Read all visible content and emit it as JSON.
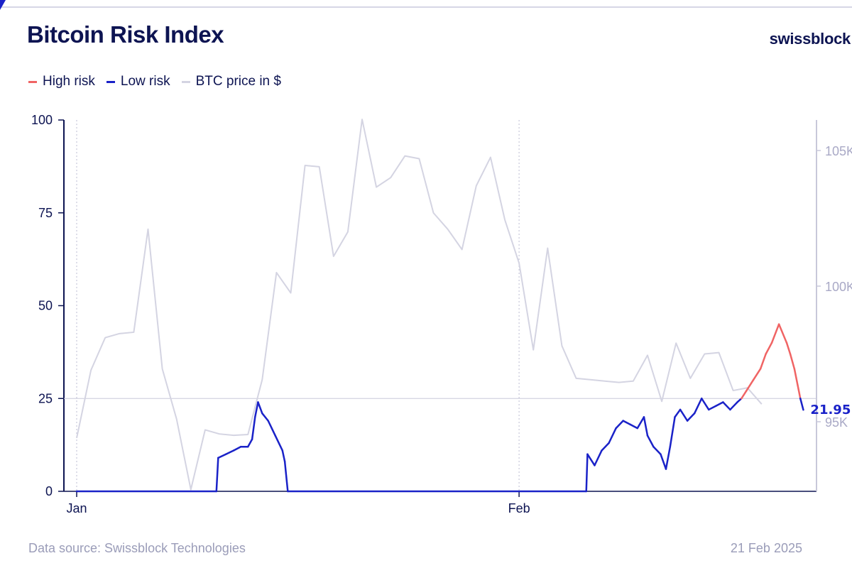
{
  "header": {
    "title": "Bitcoin Risk Index",
    "brand": "swissblock"
  },
  "footer": {
    "source": "Data source: Swissblock Technologies",
    "date": "21 Feb 2025"
  },
  "colors": {
    "high_risk": "#f06464",
    "low_risk": "#1a22c8",
    "btc_price": "#d4d4e2",
    "text": "#0d1452"
  },
  "chart_data": {
    "type": "line",
    "title": "Bitcoin Risk Index",
    "legend": {
      "position": "top-left",
      "entries": [
        "High risk",
        "Low risk",
        "BTC price in $"
      ]
    },
    "x_ticks": [
      {
        "label": "Jan",
        "date": "2025-01-01"
      },
      {
        "label": "Feb",
        "date": "2025-02-01"
      }
    ],
    "y_left": {
      "range": [
        0,
        100
      ],
      "ticks": [
        "0",
        "25",
        "50",
        "75",
        "100"
      ]
    },
    "y_right": {
      "range": [
        92500,
        106150
      ],
      "ticks": [
        {
          "label": "95K",
          "value": 95000
        },
        {
          "label": "100K",
          "value": 100000
        },
        {
          "label": "105K",
          "value": 105000
        }
      ]
    },
    "threshold": 25,
    "last_value_label": "21.95",
    "grid": false,
    "series": [
      {
        "name": "BTC price in $",
        "axis": "right",
        "start_date": "2025-01-01",
        "values": [
          94400,
          96900,
          98100,
          98250,
          98300,
          102100,
          96950,
          95100,
          92500,
          94700,
          94550,
          94500,
          94530,
          96550,
          100500,
          99750,
          104450,
          104400,
          101100,
          102000,
          106150,
          103650,
          104000,
          104800,
          104700,
          102700,
          102100,
          101350,
          103700,
          104750,
          102450,
          100850,
          97650,
          101400,
          97800,
          96600,
          96550,
          96500,
          96450,
          96500,
          97450,
          95750,
          97900,
          96600,
          97500,
          97550,
          96150,
          96250,
          95650
        ]
      },
      {
        "name": "Risk index",
        "axis": "left",
        "high_label": "High risk",
        "low_label": "Low risk",
        "points": [
          [
            "2025-01-01T00:00",
            0
          ],
          [
            "2025-01-10T19:00",
            0
          ],
          [
            "2025-01-10T22:00",
            9
          ],
          [
            "2025-01-11T11:00",
            10
          ],
          [
            "2025-01-12T00:00",
            11
          ],
          [
            "2025-01-12T12:00",
            12
          ],
          [
            "2025-01-13T00:00",
            12
          ],
          [
            "2025-01-13T07:00",
            14
          ],
          [
            "2025-01-13T12:00",
            20
          ],
          [
            "2025-01-13T17:00",
            24
          ],
          [
            "2025-01-14T00:00",
            21
          ],
          [
            "2025-01-14T10:00",
            19
          ],
          [
            "2025-01-14T22:00",
            15
          ],
          [
            "2025-01-15T10:00",
            11
          ],
          [
            "2025-01-15T14:00",
            8
          ],
          [
            "2025-01-15T19:00",
            0
          ],
          [
            "2025-02-05T17:00",
            0
          ],
          [
            "2025-02-05T19:00",
            10
          ],
          [
            "2025-02-06T07:00",
            7
          ],
          [
            "2025-02-06T19:00",
            11
          ],
          [
            "2025-02-07T07:00",
            13
          ],
          [
            "2025-02-07T19:00",
            17
          ],
          [
            "2025-02-08T07:00",
            19
          ],
          [
            "2025-02-08T19:00",
            18
          ],
          [
            "2025-02-09T07:00",
            17
          ],
          [
            "2025-02-09T18:00",
            20
          ],
          [
            "2025-02-10T00:00",
            15
          ],
          [
            "2025-02-10T10:00",
            12
          ],
          [
            "2025-02-10T22:00",
            10
          ],
          [
            "2025-02-11T07:00",
            6
          ],
          [
            "2025-02-11T14:00",
            12
          ],
          [
            "2025-02-11T22:00",
            20
          ],
          [
            "2025-02-12T07:00",
            22
          ],
          [
            "2025-02-12T19:00",
            19
          ],
          [
            "2025-02-13T07:00",
            21
          ],
          [
            "2025-02-13T19:00",
            25
          ],
          [
            "2025-02-14T07:00",
            22
          ],
          [
            "2025-02-14T19:00",
            23
          ],
          [
            "2025-02-15T07:00",
            24
          ],
          [
            "2025-02-15T19:00",
            22
          ],
          [
            "2025-02-16T07:00",
            24
          ],
          [
            "2025-02-16T14:00",
            25
          ],
          [
            "2025-02-16T22:00",
            27
          ],
          [
            "2025-02-17T10:00",
            30
          ],
          [
            "2025-02-17T22:00",
            33
          ],
          [
            "2025-02-18T07:00",
            37
          ],
          [
            "2025-02-18T17:00",
            40
          ],
          [
            "2025-02-19T05:00",
            45
          ],
          [
            "2025-02-19T18:00",
            40
          ],
          [
            "2025-02-20T00:00",
            37
          ],
          [
            "2025-02-20T07:00",
            33
          ],
          [
            "2025-02-20T17:00",
            25
          ],
          [
            "2025-02-20T22:00",
            21.95
          ]
        ]
      }
    ]
  }
}
